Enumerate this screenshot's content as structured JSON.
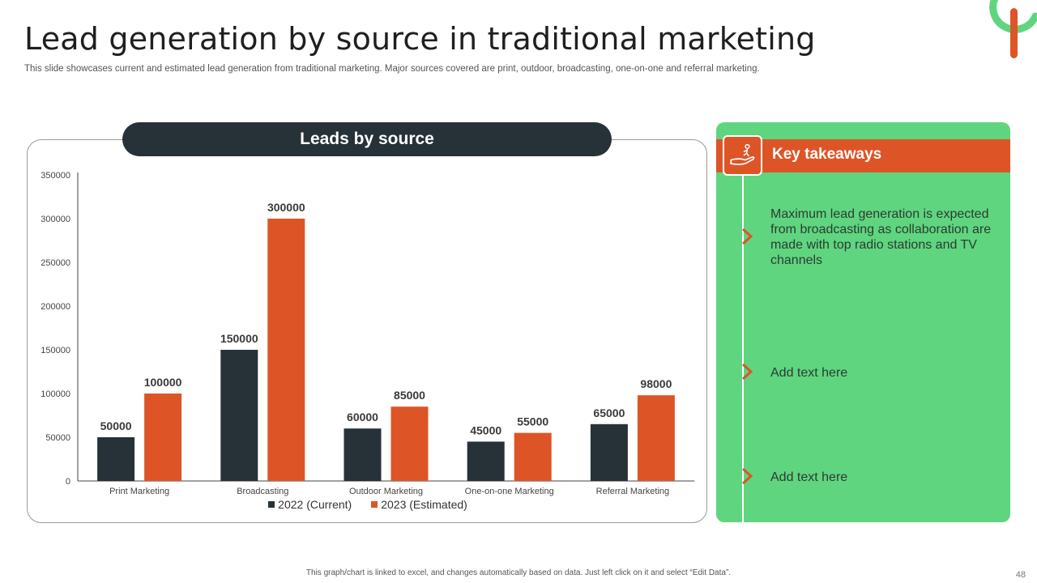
{
  "title": "Lead generation by source in traditional marketing",
  "subtitle": "This slide showcases current and estimated lead generation from traditional marketing. Major sources covered are print, outdoor, broadcasting, one-on-one and referral marketing.",
  "chart_header": "Leads by source",
  "colors": {
    "dark": "#263238",
    "orange": "#dd5527",
    "green": "#5fd57f"
  },
  "chart_data": {
    "type": "bar",
    "categories": [
      "Print Marketing",
      "Broadcasting",
      "Outdoor Marketing",
      "One-on-one Marketing",
      "Referral Marketing"
    ],
    "series": [
      {
        "name": "2022 (Current)",
        "values": [
          50000,
          150000,
          60000,
          45000,
          65000
        ],
        "color": "#263238"
      },
      {
        "name": "2023 (Estimated)",
        "values": [
          100000,
          300000,
          85000,
          55000,
          98000
        ],
        "color": "#dd5527"
      }
    ],
    "yticks": [
      "0",
      "50000",
      "100000",
      "150000",
      "200000",
      "250000",
      "300000",
      "350000"
    ],
    "ylim": [
      0,
      350000
    ],
    "grid": false,
    "legend": "bottom"
  },
  "takeaways": {
    "title": "Key takeaways",
    "icon": "hand-person-icon",
    "items": [
      "Maximum lead generation is expected from broadcasting as collaboration are made with top radio stations and TV channels",
      "Add text here",
      "Add text here"
    ]
  },
  "footer": "This graph/chart is linked to excel, and changes automatically based on data. Just left click on it and select “Edit Data”.",
  "page_number": "48"
}
